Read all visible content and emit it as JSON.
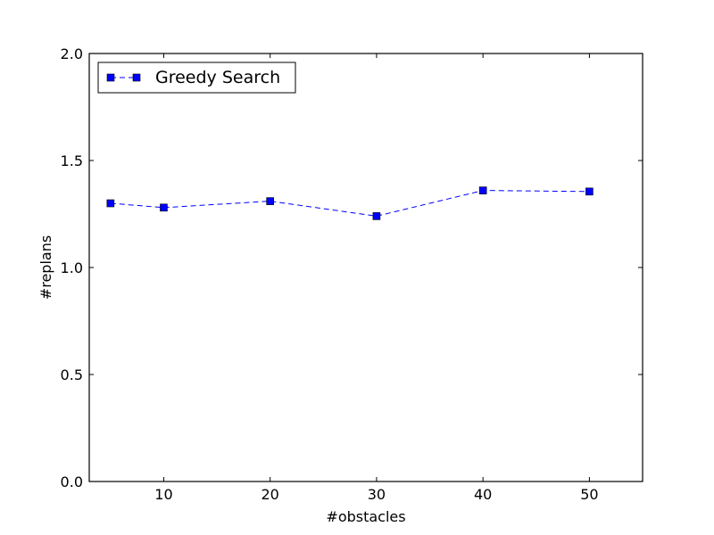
{
  "chart_data": {
    "type": "line",
    "title": "",
    "xlabel": "#obstacles",
    "ylabel": "#replans",
    "xlim": [
      3,
      55
    ],
    "ylim": [
      0.0,
      2.0
    ],
    "xticks": [
      10,
      20,
      30,
      40,
      50
    ],
    "xtick_labels": [
      "10",
      "20",
      "30",
      "40",
      "50"
    ],
    "yticks": [
      0.0,
      0.5,
      1.0,
      1.5,
      2.0
    ],
    "ytick_labels": [
      "0.0",
      "0.5",
      "1.0",
      "1.5",
      "2.0"
    ],
    "grid": false,
    "legend_position": "top-left",
    "series": [
      {
        "name": "Greedy Search",
        "color": "#0000ff",
        "line_style": "dashed",
        "marker": "square",
        "x": [
          5,
          10,
          20,
          30,
          40,
          50
        ],
        "y": [
          1.3,
          1.28,
          1.31,
          1.24,
          1.36,
          1.355
        ]
      }
    ]
  }
}
